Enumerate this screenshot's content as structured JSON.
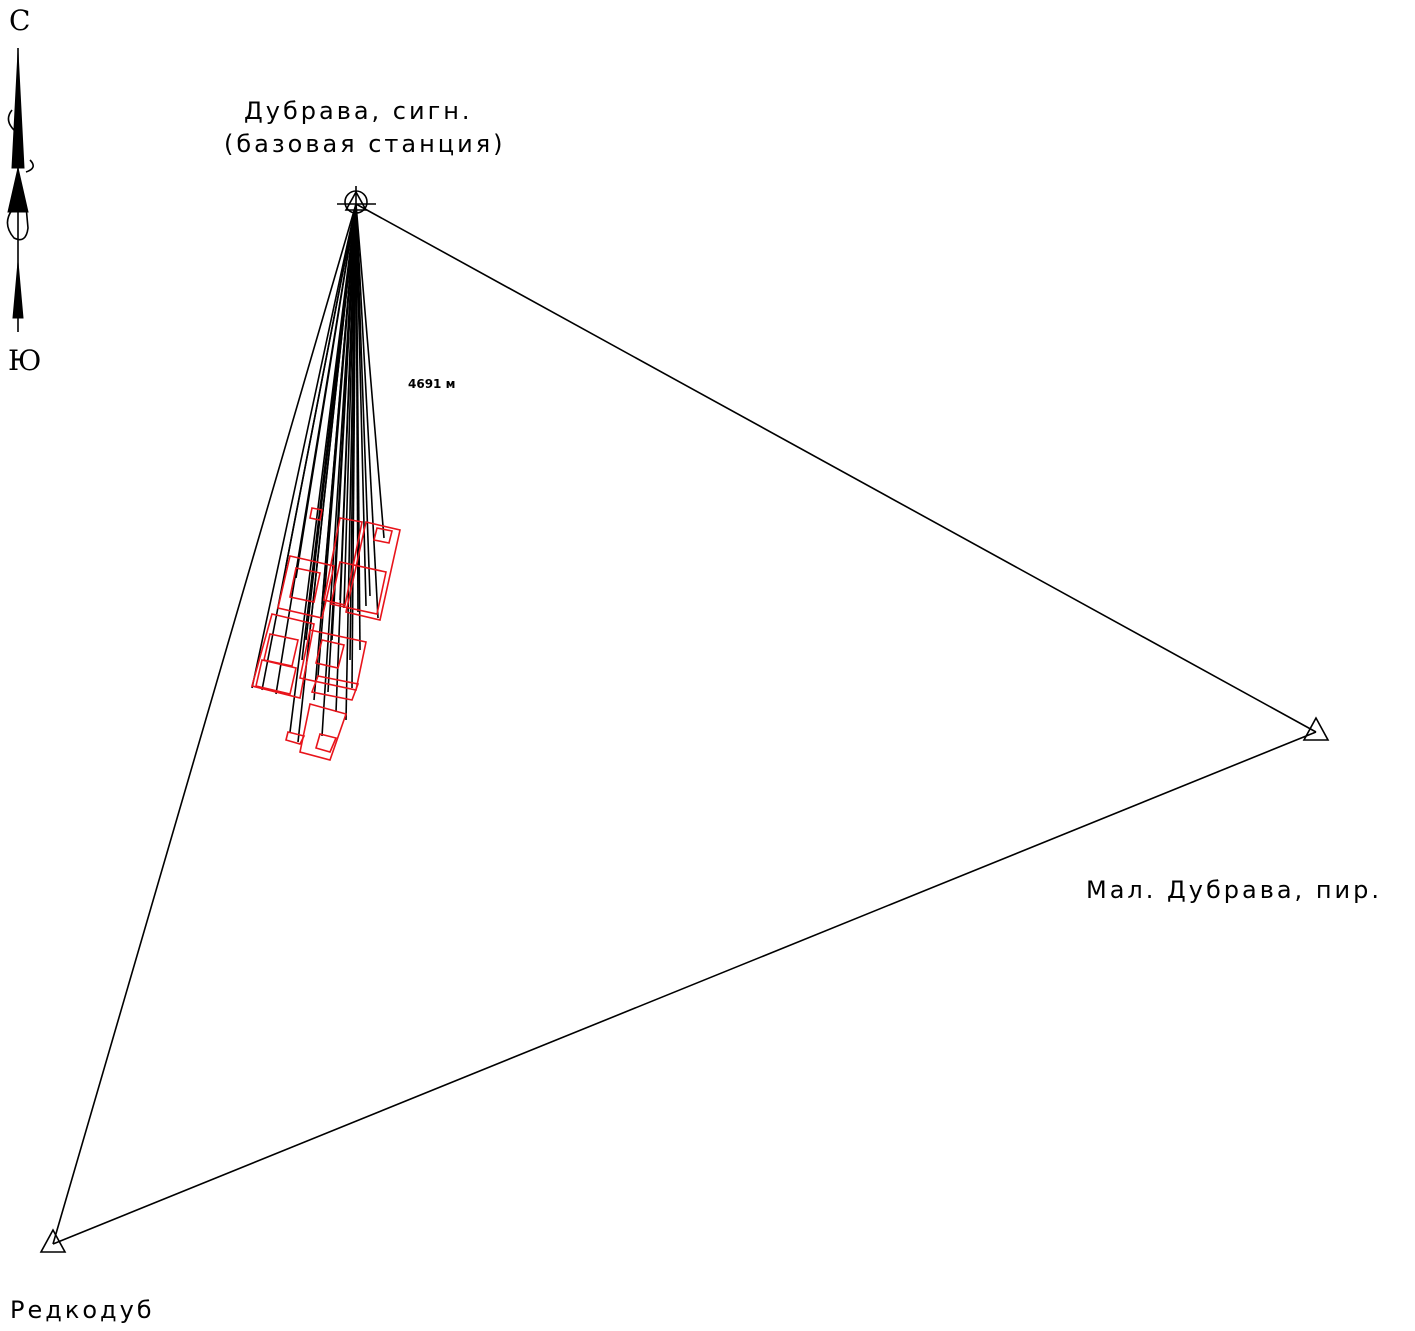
{
  "compass": {
    "north": "С",
    "south": "Ю"
  },
  "stations": {
    "base": {
      "name": "Дубрава, сигн.",
      "note": "(базовая станция)"
    },
    "east": {
      "name": "Мал. Дубрава, пир."
    },
    "southwest": {
      "name": "Редкодуб"
    }
  },
  "distance_label": "4691 м",
  "colors": {
    "lines": "#000000",
    "parcels": "#e8141b"
  }
}
